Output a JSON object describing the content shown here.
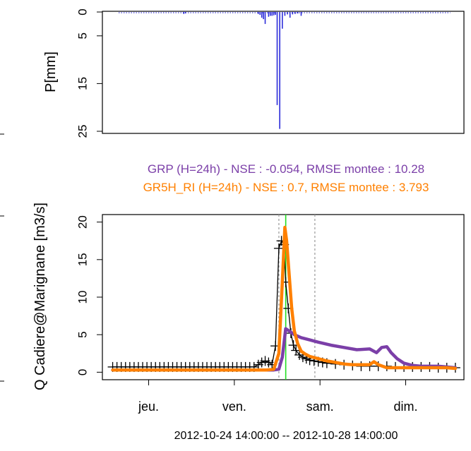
{
  "colors": {
    "rain": "#2b2bd9",
    "grp": "#7b3fa8",
    "gr5h": "#ff8000",
    "observed": "#000000",
    "vline_green": "#22dd22",
    "vline_grey": "#999999",
    "frame": "#000000"
  },
  "chart_data": [
    {
      "type": "bar",
      "name": "rainfall",
      "ylabel": "P[mm]",
      "ylim": [
        25,
        0
      ],
      "yticks": [
        0,
        5,
        15,
        25
      ],
      "x_range": [
        -0.12,
        4.1
      ],
      "x": [
        0.83,
        0.85,
        1.7,
        1.72,
        1.74,
        1.76,
        1.78,
        1.82,
        1.84,
        1.86,
        1.88,
        1.9,
        1.92,
        1.95,
        1.98,
        2.01,
        2.04,
        2.07,
        2.1,
        2.13,
        2.16,
        2.2
      ],
      "values": [
        0.4,
        0.3,
        0.4,
        0.6,
        1.2,
        1.5,
        2.5,
        1.0,
        0.8,
        0.8,
        0.7,
        0.6,
        19.5,
        24.5,
        3.5,
        0.8,
        0.5,
        1.2,
        0.5,
        0.4,
        0.3,
        0.8
      ],
      "grid": false
    },
    {
      "type": "line",
      "name": "discharge",
      "title_lines": [
        "GRP (H=24h) - NSE  : -0.054, RMSE montee : 10.28",
        "GR5H_RI (H=24h) - NSE  : 0.7, RMSE montee : 3.793"
      ],
      "ylabel": "Q Cadiere@Marignane [m3/s]",
      "xlabel": "2012-10-24 14:00:00 -- 2012-10-28 14:00:00",
      "ylim": [
        -1,
        21
      ],
      "yticks": [
        0,
        5,
        10,
        15,
        20
      ],
      "x_range": [
        -0.12,
        4.1
      ],
      "xtick_labels": [
        "jeu.",
        "ven.",
        "sam.",
        "dim."
      ],
      "xtick_positions": [
        0.42,
        1.42,
        2.42,
        3.42
      ],
      "vlines": [
        {
          "x": 2.02,
          "style": "green"
        },
        {
          "x": 1.94,
          "style": "dotted"
        },
        {
          "x": 2.36,
          "style": "dotted"
        }
      ],
      "series": [
        {
          "key": "observed",
          "x": [
            0.0,
            0.05,
            0.1,
            0.15,
            0.2,
            0.25,
            0.3,
            0.35,
            0.4,
            0.45,
            0.5,
            0.55,
            0.6,
            0.65,
            0.7,
            0.75,
            0.8,
            0.85,
            0.9,
            0.95,
            1.0,
            1.05,
            1.1,
            1.15,
            1.2,
            1.25,
            1.3,
            1.35,
            1.4,
            1.45,
            1.5,
            1.55,
            1.6,
            1.65,
            1.7,
            1.74,
            1.78,
            1.82,
            1.86,
            1.9,
            1.94,
            1.97,
            2.0,
            2.02,
            2.05,
            2.08,
            2.11,
            2.14,
            2.18,
            2.22,
            2.26,
            2.3,
            2.35,
            2.4,
            2.45,
            2.5,
            2.6,
            2.7,
            2.8,
            2.9,
            3.0,
            3.1,
            3.2,
            3.3,
            3.4,
            3.5,
            3.6,
            3.7,
            3.8,
            3.9,
            4.0
          ],
          "y": [
            0.7,
            0.7,
            0.7,
            0.7,
            0.7,
            0.7,
            0.7,
            0.7,
            0.7,
            0.7,
            0.7,
            0.7,
            0.7,
            0.7,
            0.7,
            0.7,
            0.7,
            0.7,
            0.7,
            0.7,
            0.7,
            0.7,
            0.7,
            0.7,
            0.7,
            0.7,
            0.7,
            0.7,
            0.7,
            0.7,
            0.7,
            0.7,
            0.7,
            0.7,
            1.0,
            1.3,
            1.5,
            1.3,
            1.0,
            3.5,
            16.5,
            17.5,
            17.0,
            12.0,
            8.5,
            5.2,
            3.6,
            2.9,
            2.3,
            2.0,
            1.8,
            1.6,
            1.5,
            1.4,
            1.3,
            1.2,
            1.1,
            1.0,
            0.9,
            0.8,
            0.8,
            0.8,
            0.8,
            0.7,
            0.7,
            0.7,
            0.7,
            0.7,
            0.6,
            0.6,
            0.6
          ]
        },
        {
          "key": "grp",
          "x": [
            0.0,
            0.3,
            0.6,
            0.9,
            1.2,
            1.5,
            1.7,
            1.8,
            1.88,
            1.94,
            1.98,
            2.02,
            2.06,
            2.12,
            2.2,
            2.3,
            2.4,
            2.55,
            2.7,
            2.85,
            3.0,
            3.08,
            3.14,
            3.2,
            3.25,
            3.32,
            3.4,
            3.5,
            3.6,
            3.7,
            3.8,
            3.9,
            4.0
          ],
          "y": [
            0.3,
            0.3,
            0.3,
            0.3,
            0.3,
            0.3,
            0.3,
            0.3,
            0.3,
            0.4,
            2.0,
            5.8,
            5.5,
            5.0,
            4.6,
            4.3,
            4.0,
            3.6,
            3.3,
            3.0,
            3.1,
            2.6,
            3.3,
            3.4,
            2.6,
            1.8,
            1.2,
            0.9,
            0.8,
            0.8,
            0.8,
            0.7,
            0.6
          ]
        },
        {
          "key": "gr5h",
          "x": [
            0.0,
            0.3,
            0.6,
            0.9,
            1.2,
            1.5,
            1.7,
            1.8,
            1.88,
            1.94,
            1.98,
            2.01,
            2.03,
            2.06,
            2.09,
            2.12,
            2.16,
            2.2,
            2.25,
            2.3,
            2.4,
            2.5,
            2.6,
            2.7,
            2.8,
            2.9,
            3.0,
            3.05,
            3.1,
            3.2,
            3.3,
            3.4,
            3.5,
            3.6,
            3.7,
            3.8,
            3.9,
            4.0
          ],
          "y": [
            0.3,
            0.3,
            0.3,
            0.3,
            0.3,
            0.3,
            0.3,
            0.3,
            0.4,
            2.5,
            12.0,
            19.3,
            17.5,
            13.0,
            8.5,
            5.5,
            3.8,
            2.8,
            2.4,
            2.1,
            1.8,
            1.5,
            1.3,
            1.1,
            1.0,
            1.0,
            1.0,
            1.4,
            1.0,
            0.6,
            0.6,
            0.6,
            0.6,
            0.6,
            0.6,
            0.6,
            0.6,
            0.5
          ]
        }
      ]
    }
  ]
}
